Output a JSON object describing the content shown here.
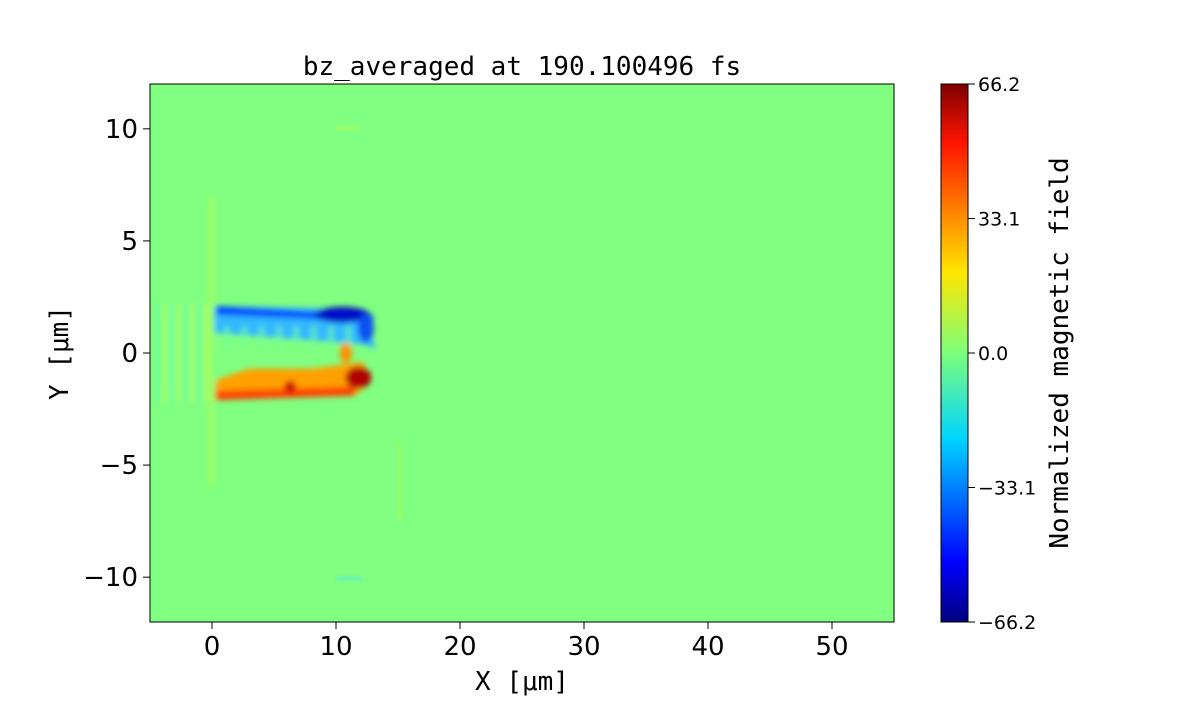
{
  "chart_data": {
    "type": "heatmap",
    "title": "bz_averaged at 190.100496 fs",
    "xlabel": "X [μm]",
    "ylabel": "Y [μm]",
    "xlim": [
      -5,
      55
    ],
    "ylim": [
      -12,
      12
    ],
    "xticks": [
      0,
      10,
      20,
      30,
      40,
      50
    ],
    "yticks": [
      -10,
      -5,
      0,
      5,
      10
    ],
    "xtick_labels": [
      "0",
      "10",
      "20",
      "30",
      "40",
      "50"
    ],
    "ytick_labels": [
      "−10",
      "−5",
      "0",
      "5",
      "10"
    ],
    "colormap": "jet",
    "colorbar": {
      "label": "Normalized magnetic field",
      "range": [
        -66.2,
        66.2
      ],
      "ticks": [
        -66.2,
        -33.1,
        0.0,
        33.1,
        66.2
      ],
      "tick_labels": [
        "−66.2",
        "−33.1",
        "0.0",
        "33.1",
        "66.2"
      ]
    },
    "background_value": 0.0,
    "features": [
      {
        "region": "negative band",
        "x_range": [
          0,
          13
        ],
        "y_range": [
          0.3,
          2.1
        ],
        "min_value": -55
      },
      {
        "region": "positive band",
        "x_range": [
          0,
          12.5
        ],
        "y_range": [
          -2.1,
          -0.3
        ],
        "max_value": 60
      }
    ]
  }
}
